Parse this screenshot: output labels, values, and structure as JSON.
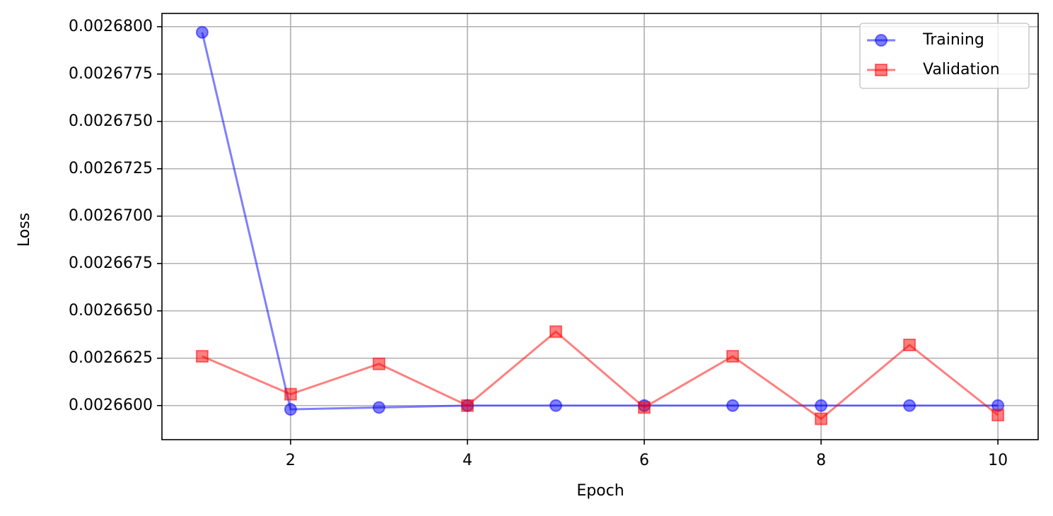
{
  "chart_data": {
    "type": "line",
    "x_label": "Epoch",
    "y_label": "Loss",
    "x": [
      1,
      2,
      3,
      4,
      5,
      6,
      7,
      8,
      9,
      10
    ],
    "series": [
      {
        "name": "Training",
        "color": "#0000ff",
        "marker": "o",
        "alpha": 0.5,
        "values": [
          0.0026797,
          0.0026598,
          0.0026599,
          0.00266,
          0.00266,
          0.00266,
          0.00266,
          0.00266,
          0.00266,
          0.00266
        ]
      },
      {
        "name": "Validation",
        "color": "#ff0000",
        "marker": "s",
        "alpha": 0.5,
        "values": [
          0.0026626,
          0.0026606,
          0.0026622,
          0.00266,
          0.0026639,
          0.0026599,
          0.0026626,
          0.0026593,
          0.0026632,
          0.0026595
        ]
      }
    ],
    "xlim": [
      0.545,
      10.455
    ],
    "ylim": [
      0.0026582,
      0.0026807
    ],
    "xticks": [
      2,
      4,
      6,
      8,
      10
    ],
    "yticks": [
      {
        "value": 0.00266,
        "label": "0.0026600"
      },
      {
        "value": 0.0026625,
        "label": "0.0026625"
      },
      {
        "value": 0.002665,
        "label": "0.0026650"
      },
      {
        "value": 0.0026675,
        "label": "0.0026675"
      },
      {
        "value": 0.00267,
        "label": "0.0026700"
      },
      {
        "value": 0.0026725,
        "label": "0.0026725"
      },
      {
        "value": 0.002675,
        "label": "0.0026750"
      },
      {
        "value": 0.0026775,
        "label": "0.0026775"
      },
      {
        "value": 0.00268,
        "label": "0.0026800"
      }
    ],
    "grid": true,
    "legend": "upper right"
  }
}
